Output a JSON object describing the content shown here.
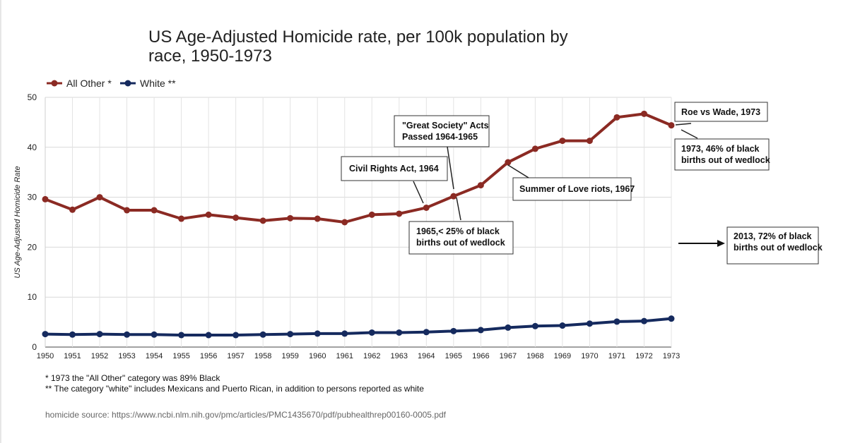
{
  "chart_data": {
    "type": "line",
    "title": [
      "US Age-Adjusted Homicide rate, per 100k population by",
      "race, 1950-1973"
    ],
    "ylabel": "US Age-Adjusted Homicide Rate",
    "xlabel": "",
    "ylim": [
      0,
      50
    ],
    "yticks": [
      0,
      10,
      20,
      30,
      40,
      50
    ],
    "grid": true,
    "legend": "top-left",
    "x": [
      1950,
      1951,
      1952,
      1953,
      1954,
      1955,
      1956,
      1957,
      1958,
      1959,
      1960,
      1961,
      1962,
      1963,
      1964,
      1965,
      1966,
      1967,
      1968,
      1969,
      1970,
      1971,
      1972,
      1973
    ],
    "series": [
      {
        "name": "All Other *",
        "color": "#8b2a23",
        "values": [
          29.6,
          27.5,
          30.0,
          27.4,
          27.4,
          25.7,
          26.5,
          25.9,
          25.3,
          25.8,
          25.7,
          25.0,
          26.5,
          26.7,
          27.9,
          30.2,
          32.4,
          37.0,
          39.7,
          41.3,
          41.3,
          46.0,
          46.7,
          44.4
        ]
      },
      {
        "name": "White **",
        "color": "#152a5e",
        "values": [
          2.6,
          2.5,
          2.6,
          2.5,
          2.5,
          2.4,
          2.4,
          2.4,
          2.5,
          2.6,
          2.7,
          2.7,
          2.9,
          2.9,
          3.0,
          3.2,
          3.4,
          3.9,
          4.2,
          4.3,
          4.7,
          5.1,
          5.2,
          5.7
        ]
      }
    ],
    "annotations": [
      {
        "lines": [
          "Civil Rights Act, 1964"
        ]
      },
      {
        "lines": [
          "\"Great Society\" Acts",
          "Passed 1964-1965"
        ]
      },
      {
        "lines": [
          "Summer of Love riots, 1967"
        ]
      },
      {
        "lines": [
          "1965,< 25% of black",
          "births out of wedlock"
        ]
      },
      {
        "lines": [
          "Roe vs Wade, 1973"
        ]
      },
      {
        "lines": [
          "1973, 46% of black",
          "births out of wedlock"
        ]
      },
      {
        "lines": [
          "2013, 72% of black",
          "births out of wedlock"
        ]
      }
    ]
  },
  "footnotes": [
    "* 1973 the \"All Other\" category was 89% Black",
    "** The category \"white\" includes Mexicans and Puerto Rican, in addition to persons reported as white"
  ],
  "source": "homicide source: https://www.ncbi.nlm.nih.gov/pmc/articles/PMC1435670/pdf/pubhealthrep00160-0005.pdf"
}
